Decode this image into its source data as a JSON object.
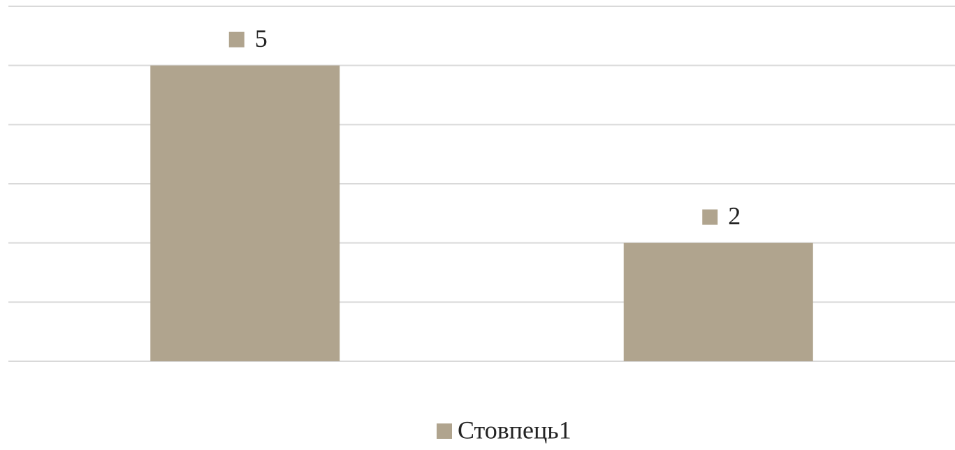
{
  "chart_data": {
    "type": "bar",
    "categories": [
      null,
      null
    ],
    "series": [
      {
        "name": "Стовпець1",
        "color": "#b0a48e",
        "values": [
          5,
          2
        ]
      }
    ],
    "ylim": [
      0,
      6
    ],
    "yticks": [
      0,
      1,
      2,
      3,
      4,
      5,
      6
    ],
    "grid": true,
    "legend": "bottom"
  }
}
